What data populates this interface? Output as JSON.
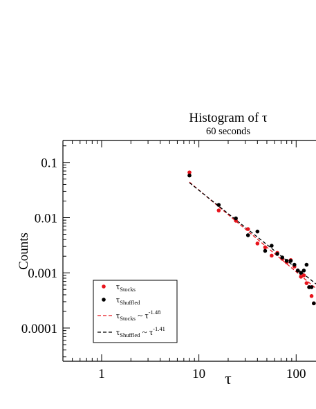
{
  "chart_data": {
    "type": "scatter",
    "title": "Histogram of τ",
    "subtitle": "60 seconds",
    "xlabel": "τ",
    "ylabel": "Counts",
    "x_scale": "log",
    "y_scale": "log",
    "xlim": [
      0.4,
      160
    ],
    "ylim": [
      2.5e-05,
      0.25
    ],
    "x_ticks": [
      {
        "value": 1,
        "label": "1"
      },
      {
        "value": 10,
        "label": "10"
      },
      {
        "value": 100,
        "label": "100"
      }
    ],
    "y_ticks": [
      {
        "value": 0.1,
        "label": "0.1"
      },
      {
        "value": 0.01,
        "label": "0.01"
      },
      {
        "value": 0.001,
        "label": "0.001"
      },
      {
        "value": 0.0001,
        "label": "0.0001"
      }
    ],
    "legend_position": "bottom-left",
    "series": [
      {
        "key": "stocks",
        "legend_main": "τ",
        "legend_sub": "Stocks",
        "color": "#e8141c",
        "x": [
          8,
          16,
          24,
          32,
          40,
          48,
          56,
          64,
          72,
          80,
          88,
          96,
          104,
          112,
          120,
          128,
          136,
          144,
          152
        ],
        "y": [
          0.066,
          0.0135,
          0.0088,
          0.0062,
          0.0034,
          0.0029,
          0.00205,
          0.0023,
          0.0018,
          0.00155,
          0.0017,
          0.0013,
          0.0011,
          0.00085,
          0.0009,
          0.00065,
          0.00055,
          0.00038,
          0.00028
        ]
      },
      {
        "key": "shuffled",
        "legend_main": "τ",
        "legend_sub": "Shuffled",
        "color": "#000000",
        "x": [
          8,
          16,
          24,
          32,
          40,
          48,
          56,
          64,
          72,
          80,
          88,
          96,
          104,
          112,
          120,
          128,
          136,
          144,
          152
        ],
        "y": [
          0.058,
          0.017,
          0.0097,
          0.0048,
          0.0056,
          0.0025,
          0.0031,
          0.0022,
          0.0019,
          0.00165,
          0.00165,
          0.0014,
          0.0011,
          0.001,
          0.0011,
          0.0014,
          0.00055,
          0.00055,
          0.00028
        ]
      }
    ],
    "fits": [
      {
        "key": "stocks-fit",
        "legend_main": "τ",
        "legend_sub": "Stocks",
        "legend_tilde": " ~ τ",
        "legend_exp": "-1.48",
        "exponent": -1.48,
        "x_range": [
          8,
          160
        ],
        "y_at_start": 0.044,
        "color": "#e8141c"
      },
      {
        "key": "shuffled-fit",
        "legend_main": "τ",
        "legend_sub": "Shuffled",
        "legend_tilde": " ~ τ",
        "legend_exp": "-1.41",
        "exponent": -1.41,
        "x_range": [
          8,
          160
        ],
        "y_at_start": 0.043,
        "color": "#000000"
      }
    ]
  }
}
